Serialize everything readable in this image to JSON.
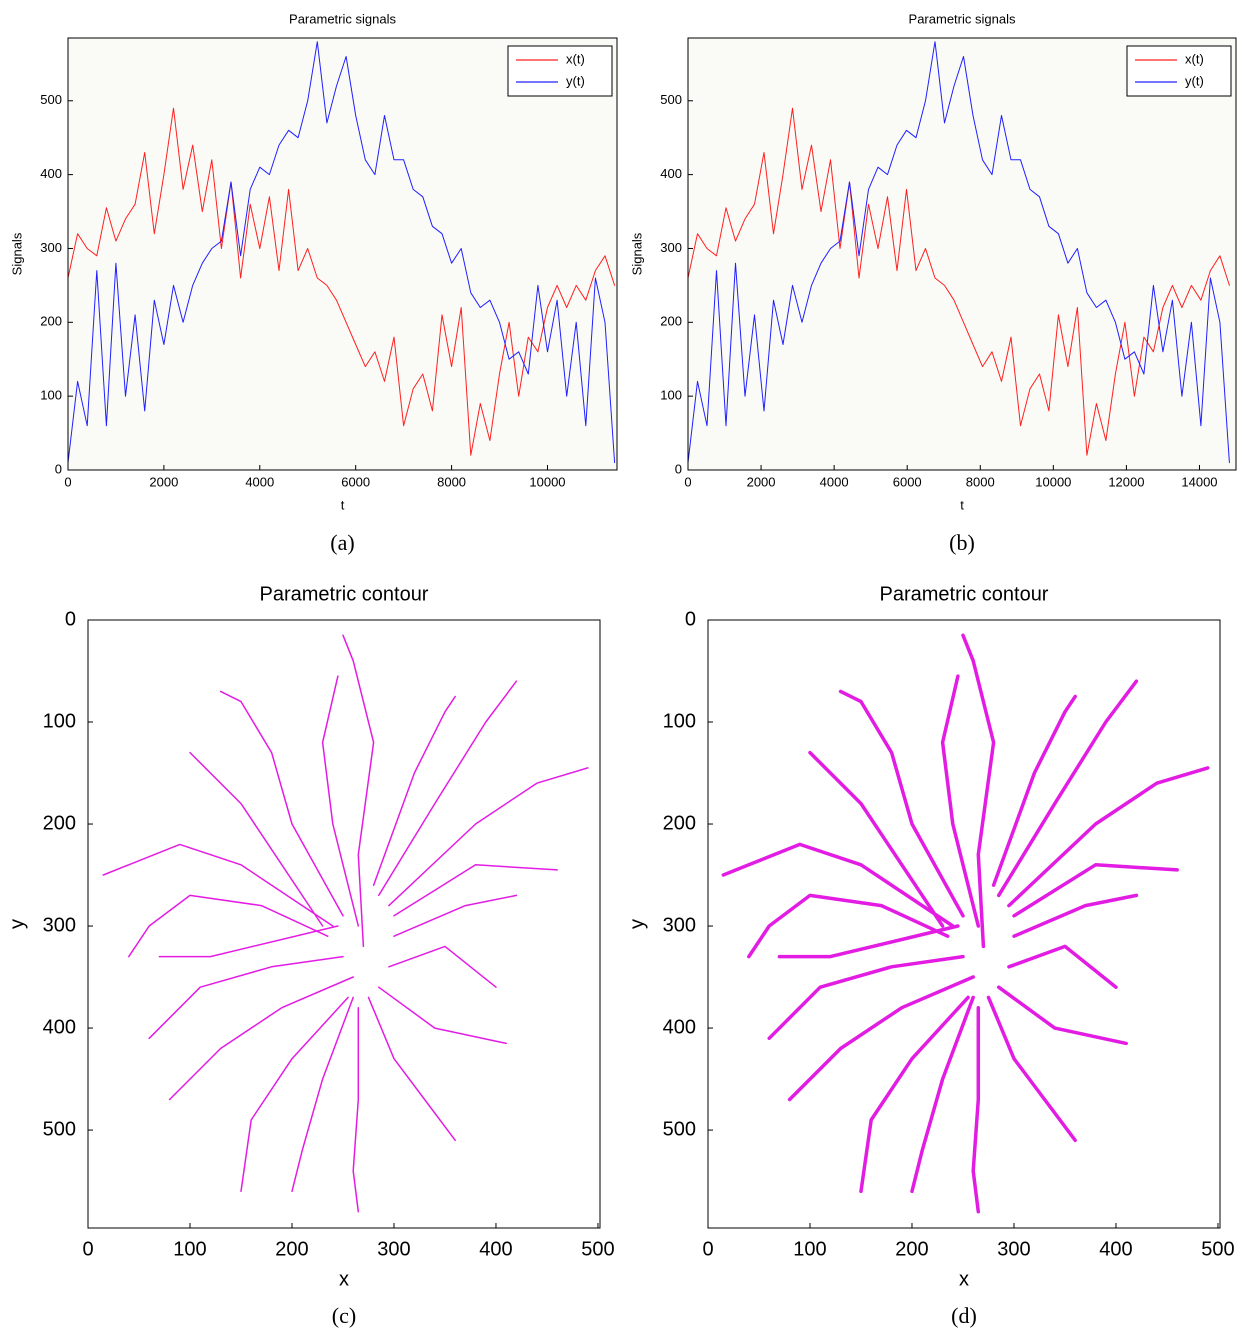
{
  "chart_data": [
    {
      "type": "line",
      "title": "Parametric signals",
      "xlabel": "t",
      "ylabel": "Signals",
      "caption": "(a)",
      "x": [
        0,
        200,
        400,
        600,
        800,
        1000,
        1200,
        1400,
        1600,
        1800,
        2000,
        2200,
        2400,
        2600,
        2800,
        3000,
        3200,
        3400,
        3600,
        3800,
        4000,
        4200,
        4400,
        4600,
        4800,
        5000,
        5200,
        5400,
        5600,
        5800,
        6000,
        6200,
        6400,
        6600,
        6800,
        7000,
        7200,
        7400,
        7600,
        7800,
        8000,
        8200,
        8400,
        8600,
        8800,
        9000,
        9200,
        9400,
        9600,
        9800,
        10000,
        10200,
        10400,
        10600,
        10800,
        11000,
        11200,
        11400
      ],
      "series": [
        {
          "name": "x(t)",
          "color": "#ff2020",
          "values": [
            260,
            320,
            300,
            290,
            355,
            310,
            340,
            360,
            430,
            320,
            400,
            490,
            380,
            440,
            350,
            420,
            300,
            390,
            260,
            360,
            300,
            370,
            270,
            380,
            270,
            300,
            260,
            250,
            230,
            200,
            170,
            140,
            160,
            120,
            180,
            60,
            110,
            130,
            80,
            210,
            140,
            220,
            20,
            90,
            40,
            130,
            200,
            100,
            180,
            160,
            220,
            250,
            220,
            250,
            230,
            270,
            290,
            250
          ]
        },
        {
          "name": "y(t)",
          "color": "#2020ff",
          "values": [
            10,
            120,
            60,
            270,
            60,
            280,
            100,
            210,
            80,
            230,
            170,
            250,
            200,
            250,
            280,
            300,
            310,
            390,
            290,
            380,
            410,
            400,
            440,
            460,
            450,
            500,
            580,
            470,
            520,
            560,
            480,
            420,
            400,
            480,
            420,
            420,
            380,
            370,
            330,
            320,
            280,
            300,
            240,
            220,
            230,
            200,
            150,
            160,
            130,
            250,
            160,
            230,
            100,
            200,
            60,
            260,
            200,
            10
          ]
        }
      ],
      "xlim": [
        0,
        11450
      ],
      "ylim": [
        0,
        585
      ],
      "xticks": [
        0,
        2000,
        4000,
        6000,
        8000,
        10000
      ],
      "yticks": [
        0,
        100,
        200,
        300,
        400,
        500
      ],
      "legend": "northeast",
      "y_reversed": false,
      "line_width": 1
    },
    {
      "type": "line",
      "title": "Parametric signals",
      "xlabel": "t",
      "ylabel": "Signals",
      "caption": "(b)",
      "x": [
        0,
        260,
        520,
        780,
        1040,
        1300,
        1560,
        1820,
        2080,
        2340,
        2600,
        2860,
        3120,
        3380,
        3640,
        3900,
        4160,
        4420,
        4680,
        4940,
        5200,
        5460,
        5720,
        5980,
        6240,
        6500,
        6760,
        7020,
        7280,
        7540,
        7800,
        8060,
        8320,
        8580,
        8840,
        9100,
        9360,
        9620,
        9880,
        10140,
        10400,
        10660,
        10920,
        11180,
        11440,
        11700,
        11960,
        12220,
        12480,
        12740,
        13000,
        13260,
        13520,
        13780,
        14040,
        14300,
        14560,
        14820
      ],
      "series": [
        {
          "name": "x(t)",
          "color": "#ff2020",
          "values": [
            260,
            320,
            300,
            290,
            355,
            310,
            340,
            360,
            430,
            320,
            400,
            490,
            380,
            440,
            350,
            420,
            300,
            390,
            260,
            360,
            300,
            370,
            270,
            380,
            270,
            300,
            260,
            250,
            230,
            200,
            170,
            140,
            160,
            120,
            180,
            60,
            110,
            130,
            80,
            210,
            140,
            220,
            20,
            90,
            40,
            130,
            200,
            100,
            180,
            160,
            220,
            250,
            220,
            250,
            230,
            270,
            290,
            250
          ]
        },
        {
          "name": "y(t)",
          "color": "#2020ff",
          "values": [
            10,
            120,
            60,
            270,
            60,
            280,
            100,
            210,
            80,
            230,
            170,
            250,
            200,
            250,
            280,
            300,
            310,
            390,
            290,
            380,
            410,
            400,
            440,
            460,
            450,
            500,
            580,
            470,
            520,
            560,
            480,
            420,
            400,
            480,
            420,
            420,
            380,
            370,
            330,
            320,
            280,
            300,
            240,
            220,
            230,
            200,
            150,
            160,
            130,
            250,
            160,
            230,
            100,
            200,
            60,
            260,
            200,
            10
          ]
        }
      ],
      "xlim": [
        0,
        15000
      ],
      "ylim": [
        0,
        585
      ],
      "xticks": [
        0,
        2000,
        4000,
        6000,
        8000,
        10000,
        12000,
        14000
      ],
      "yticks": [
        0,
        100,
        200,
        300,
        400,
        500
      ],
      "legend": "northeast",
      "y_reversed": false,
      "line_width": 1
    },
    {
      "type": "line",
      "title": "Parametric contour",
      "xlabel": "x",
      "ylabel": "y",
      "caption": "(c)",
      "x": [
        270,
        265,
        280,
        260,
        250,
        null,
        265,
        240,
        230,
        245,
        null,
        250,
        200,
        180,
        150,
        130,
        null,
        240,
        150,
        90,
        40,
        15,
        null,
        235,
        170,
        100,
        60,
        40,
        null,
        250,
        180,
        110,
        60,
        null,
        260,
        190,
        130,
        80,
        null,
        255,
        200,
        160,
        150,
        null,
        260,
        230,
        210,
        200,
        null,
        265,
        265,
        260,
        265,
        null,
        275,
        300,
        330,
        360,
        null,
        285,
        340,
        410,
        null,
        295,
        350,
        400,
        null,
        300,
        370,
        420,
        null,
        300,
        380,
        460,
        null,
        295,
        380,
        440,
        490,
        null,
        285,
        340,
        390,
        420,
        null,
        280,
        320,
        350,
        360,
        null,
        230,
        150,
        100,
        null,
        245,
        120,
        70
      ],
      "series": [
        {
          "color": "#e31ce3",
          "values": [
            320,
            230,
            120,
            40,
            15,
            null,
            300,
            200,
            120,
            55,
            null,
            290,
            200,
            130,
            80,
            70,
            null,
            300,
            240,
            220,
            240,
            250,
            null,
            310,
            280,
            270,
            300,
            330,
            null,
            330,
            340,
            360,
            410,
            null,
            350,
            380,
            420,
            470,
            null,
            370,
            430,
            490,
            560,
            null,
            370,
            450,
            520,
            560,
            null,
            380,
            470,
            540,
            580,
            null,
            370,
            430,
            470,
            510,
            null,
            360,
            400,
            415,
            null,
            340,
            320,
            360,
            null,
            310,
            280,
            270,
            null,
            290,
            240,
            245,
            null,
            280,
            200,
            160,
            145,
            null,
            270,
            180,
            100,
            60,
            null,
            260,
            150,
            90,
            75,
            null,
            300,
            180,
            130,
            null,
            300,
            330,
            330
          ]
        }
      ],
      "xlim": [
        0,
        502
      ],
      "ylim": [
        0,
        596
      ],
      "xticks": [
        0,
        100,
        200,
        300,
        400,
        500
      ],
      "yticks": [
        0,
        100,
        200,
        300,
        400,
        500
      ],
      "y_reversed": true,
      "line_width": 1.5
    },
    {
      "type": "line",
      "title": "Parametric contour",
      "xlabel": "x",
      "ylabel": "y",
      "caption": "(d)",
      "x": [
        270,
        265,
        280,
        260,
        250,
        null,
        265,
        240,
        230,
        245,
        null,
        250,
        200,
        180,
        150,
        130,
        null,
        240,
        150,
        90,
        40,
        15,
        null,
        235,
        170,
        100,
        60,
        40,
        null,
        250,
        180,
        110,
        60,
        null,
        260,
        190,
        130,
        80,
        null,
        255,
        200,
        160,
        150,
        null,
        260,
        230,
        210,
        200,
        null,
        265,
        265,
        260,
        265,
        null,
        275,
        300,
        330,
        360,
        null,
        285,
        340,
        410,
        null,
        295,
        350,
        400,
        null,
        300,
        370,
        420,
        null,
        300,
        380,
        460,
        null,
        295,
        380,
        440,
        490,
        null,
        285,
        340,
        390,
        420,
        null,
        280,
        320,
        350,
        360,
        null,
        230,
        150,
        100,
        null,
        245,
        120,
        70
      ],
      "series": [
        {
          "color": "#e31ce3",
          "values": [
            320,
            230,
            120,
            40,
            15,
            null,
            300,
            200,
            120,
            55,
            null,
            290,
            200,
            130,
            80,
            70,
            null,
            300,
            240,
            220,
            240,
            250,
            null,
            310,
            280,
            270,
            300,
            330,
            null,
            330,
            340,
            360,
            410,
            null,
            350,
            380,
            420,
            470,
            null,
            370,
            430,
            490,
            560,
            null,
            370,
            450,
            520,
            560,
            null,
            380,
            470,
            540,
            580,
            null,
            370,
            430,
            470,
            510,
            null,
            360,
            400,
            415,
            null,
            340,
            320,
            360,
            null,
            310,
            280,
            270,
            null,
            290,
            240,
            245,
            null,
            280,
            200,
            160,
            145,
            null,
            270,
            180,
            100,
            60,
            null,
            260,
            150,
            90,
            75,
            null,
            300,
            180,
            130,
            null,
            300,
            330,
            330
          ]
        }
      ],
      "xlim": [
        0,
        502
      ],
      "ylim": [
        0,
        596
      ],
      "xticks": [
        0,
        100,
        200,
        300,
        400,
        500
      ],
      "yticks": [
        0,
        100,
        200,
        300,
        400,
        500
      ],
      "y_reversed": true,
      "line_width": 3.5
    }
  ]
}
